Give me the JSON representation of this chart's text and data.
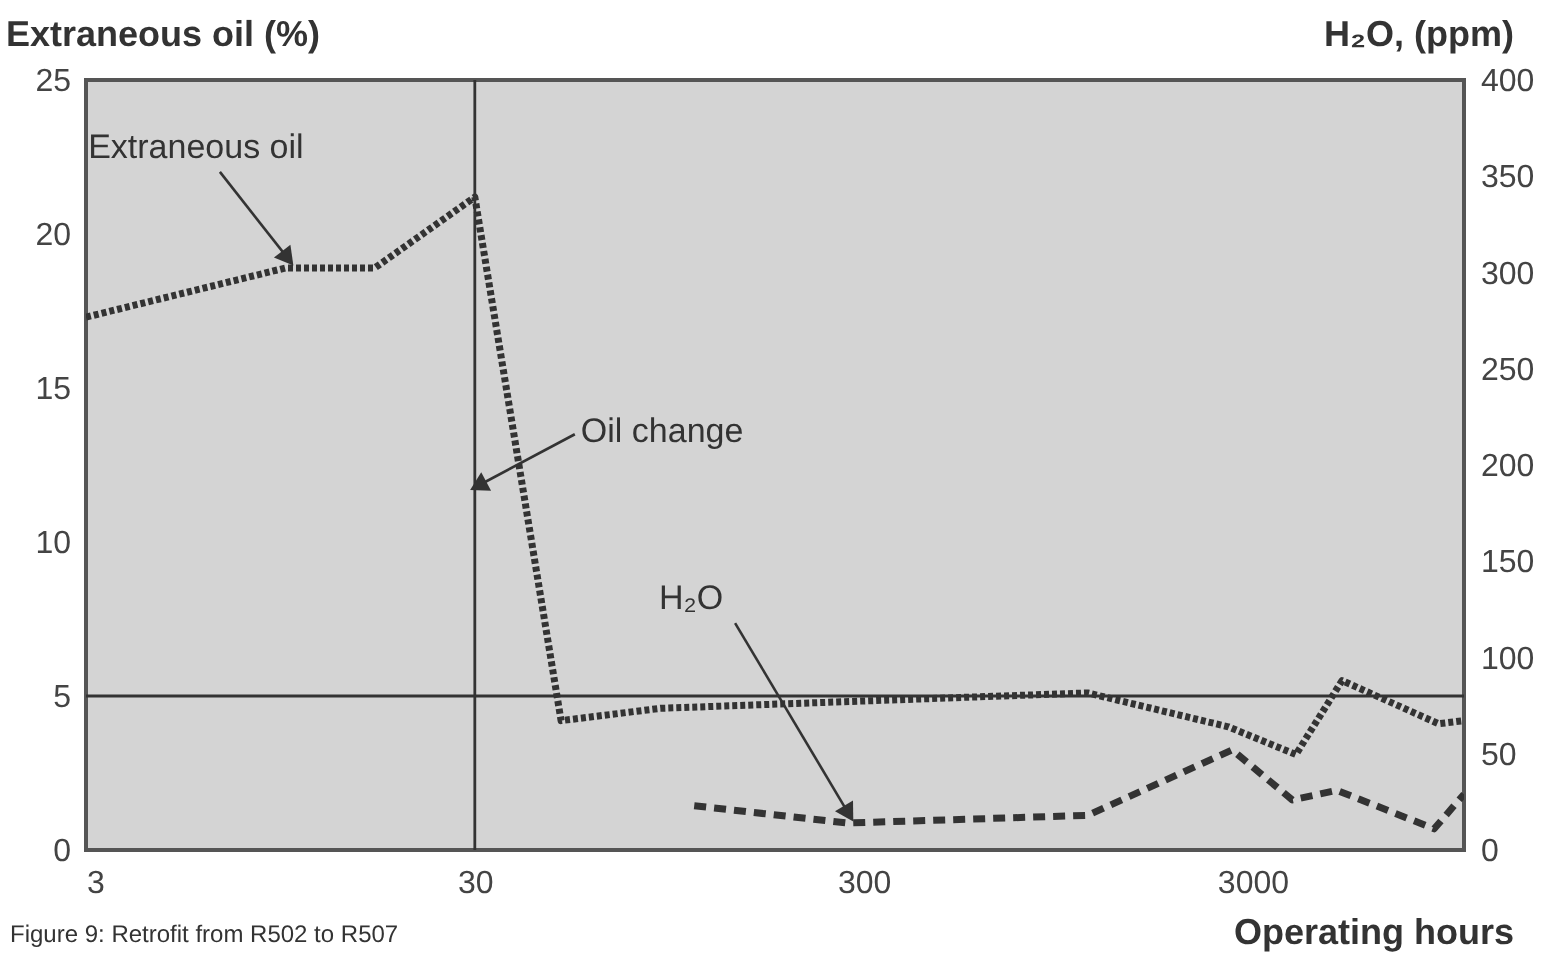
{
  "chart_data": {
    "type": "line",
    "ylabel": "Extraneous oil (%)",
    "y2label": "H₂O, (ppm)",
    "xlabel": "Operating hours",
    "log": "x",
    "xlim": [
      3,
      10500
    ],
    "xticks": [
      3,
      30,
      300,
      3000
    ],
    "ylim": [
      0,
      25
    ],
    "yticks": [
      0,
      5,
      10,
      15,
      20,
      25
    ],
    "y2lim": [
      0,
      400
    ],
    "y2ticks": [
      0,
      50,
      100,
      150,
      200,
      250,
      300,
      350,
      400
    ],
    "annotations": [
      "Figure 9: Retrofit from R502 to R507"
    ],
    "ref_lines": [
      {
        "axis": "x",
        "value": 30,
        "label": "Oil change",
        "color": "#333333"
      },
      {
        "axis": "y",
        "value": 5,
        "color": "#333333"
      }
    ],
    "series": [
      {
        "name": "Extraneous oil",
        "color": "#333333",
        "line_style": "dotted",
        "x": [
          3,
          9.8,
          16.6,
          30,
          50,
          90,
          1130,
          2600,
          3880,
          5100,
          9030,
          10500
        ],
        "values": [
          17.3,
          18.9,
          18.9,
          21.2,
          4.2,
          4.6,
          5.1,
          4.0,
          3.1,
          5.5,
          4.1,
          4.2
        ]
      },
      {
        "name": "H₂O",
        "color": "#333333",
        "line_style": "dashed",
        "axis": "y2",
        "x": [
          110,
          272,
          1130,
          2660,
          3800,
          4950,
          8800,
          10500
        ],
        "values": [
          23,
          14,
          18,
          52,
          26,
          31,
          11,
          29
        ]
      }
    ]
  }
}
